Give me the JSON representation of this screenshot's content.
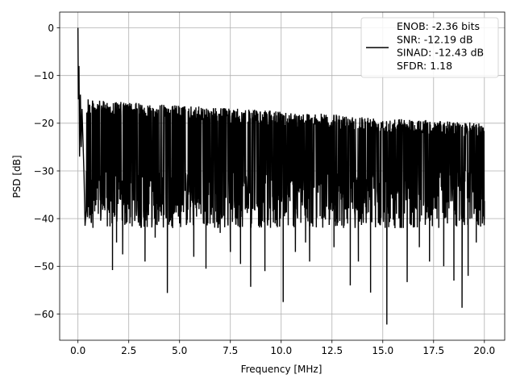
{
  "chart_data": {
    "type": "line",
    "xlabel": "Frequency [MHz]",
    "ylabel": "PSD [dB]",
    "xlim": [
      -0.9,
      21.0
    ],
    "ylim": [
      -65.5,
      3.3
    ],
    "x_ticks": [
      0.0,
      2.5,
      5.0,
      7.5,
      10.0,
      12.5,
      15.0,
      17.5,
      20.0
    ],
    "x_tick_labels": [
      "0.0",
      "2.5",
      "5.0",
      "7.5",
      "10.0",
      "12.5",
      "15.0",
      "17.5",
      "20.0"
    ],
    "y_ticks": [
      0,
      -10,
      -20,
      -30,
      -40,
      -50,
      -60
    ],
    "y_tick_labels": [
      "0",
      "−10",
      "−20",
      "−30",
      "−40",
      "−50",
      "−60"
    ],
    "grid": true,
    "legend_position": "top-right",
    "series": [
      {
        "name": "ENOB: -2.36 bits\nSNR: -12.19 dB\nSINAD: -12.43 dB\nSFDR: 1.18",
        "legend_lines": [
          "ENOB: -2.36 bits",
          "SNR: -12.19 dB",
          "SINAD: -12.43 dB",
          "SFDR: 1.18"
        ],
        "color": "#000000",
        "x_range": [
          0.0,
          20.0
        ],
        "points": [
          [
            0.0,
            0.0
          ],
          [
            0.02,
            -15.0
          ],
          [
            0.05,
            -8.0
          ],
          [
            0.08,
            -27.0
          ],
          [
            0.12,
            -14.0
          ],
          [
            0.16,
            -25.0
          ],
          [
            0.2,
            -17.0
          ],
          [
            0.3,
            -31.0
          ],
          [
            0.35,
            -41.5
          ],
          [
            0.5,
            -15.0
          ],
          [
            1.0,
            -39.0
          ],
          [
            1.2,
            -37.0
          ],
          [
            1.7,
            -50.8
          ],
          [
            1.9,
            -45.0
          ],
          [
            2.2,
            -47.5
          ],
          [
            2.5,
            -38.0
          ],
          [
            2.8,
            -40.0
          ],
          [
            3.3,
            -49.0
          ],
          [
            3.8,
            -44.0
          ],
          [
            4.4,
            -55.6
          ],
          [
            5.0,
            -41.0
          ],
          [
            5.7,
            -48.0
          ],
          [
            6.3,
            -50.5
          ],
          [
            7.0,
            -43.0
          ],
          [
            7.5,
            -47.0
          ],
          [
            8.0,
            -49.5
          ],
          [
            8.5,
            -54.3
          ],
          [
            9.2,
            -51.0
          ],
          [
            9.7,
            -41.0
          ],
          [
            10.1,
            -57.5
          ],
          [
            10.7,
            -47.0
          ],
          [
            11.2,
            -45.0
          ],
          [
            11.4,
            -49.0
          ],
          [
            12.0,
            -40.0
          ],
          [
            12.6,
            -46.0
          ],
          [
            13.4,
            -54.0
          ],
          [
            13.8,
            -49.0
          ],
          [
            14.4,
            -55.5
          ],
          [
            15.2,
            -62.2
          ],
          [
            15.6,
            -42.0
          ],
          [
            16.2,
            -53.3
          ],
          [
            16.8,
            -46.0
          ],
          [
            17.3,
            -49.0
          ],
          [
            18.0,
            -50.0
          ],
          [
            18.5,
            -53.0
          ],
          [
            18.9,
            -58.7
          ],
          [
            19.2,
            -52.0
          ],
          [
            19.6,
            -45.0
          ],
          [
            20.0,
            -40.0
          ]
        ],
        "typical_band": [
          -40,
          -15
        ]
      }
    ]
  }
}
